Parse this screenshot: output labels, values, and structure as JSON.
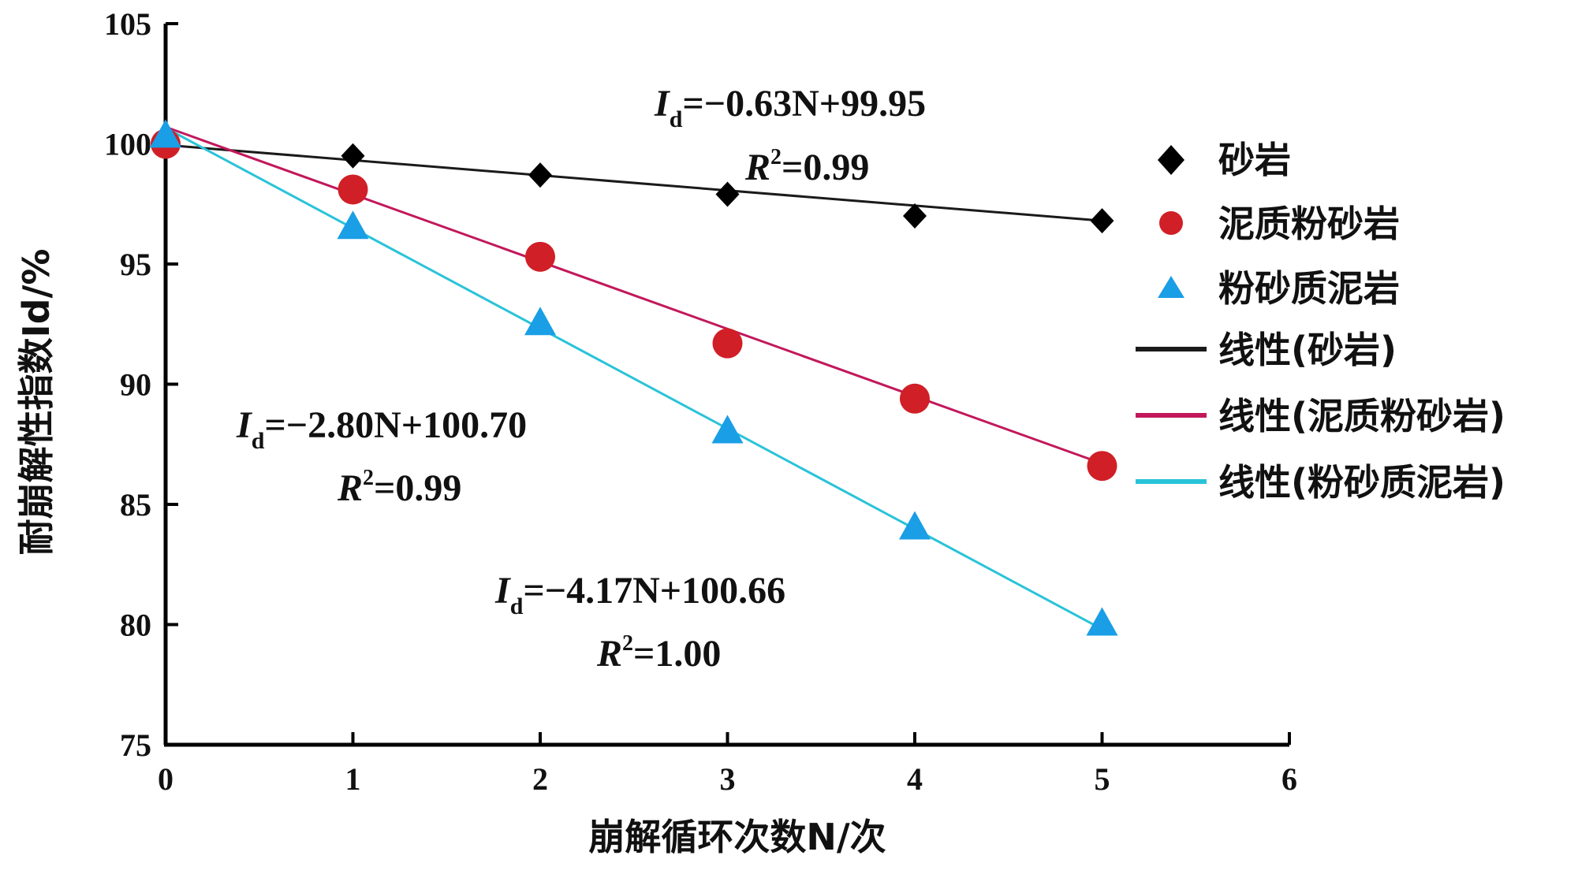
{
  "chart_data": {
    "type": "scatter",
    "xlabel": "崩解循环次数N/次",
    "ylabel": "耐崩解性指数Id/%",
    "xlim": [
      0,
      6
    ],
    "ylim": [
      75,
      105
    ],
    "xticks": [
      "0",
      "1",
      "2",
      "3",
      "4",
      "5",
      "6"
    ],
    "yticks": [
      "75",
      "80",
      "85",
      "90",
      "95",
      "100",
      "105"
    ],
    "grid": false,
    "legend_position": "right",
    "series": [
      {
        "name": "砂岩",
        "marker": "diamond",
        "color": "#000000",
        "x": [
          0,
          1,
          2,
          3,
          4,
          5
        ],
        "values": [
          100.2,
          99.5,
          98.7,
          97.9,
          97.0,
          96.8
        ],
        "fit_name": "线性(砂岩)",
        "fit_color": "#1a1a1a",
        "fit": {
          "slope": -0.63,
          "intercept": 99.95
        },
        "equation": {
          "lhs": "I",
          "sub": "d",
          "rhs": "=−0.63N+99.95",
          "r2_label": "R",
          "r2_sup": "2",
          "r2_value": "=0.99"
        }
      },
      {
        "name": "泥质粉砂岩",
        "marker": "circle",
        "color": "#d01f26",
        "x": [
          0,
          1,
          2,
          3,
          4,
          5
        ],
        "values": [
          100.0,
          98.1,
          95.3,
          91.7,
          89.4,
          86.6
        ],
        "fit_name": "线性(泥质粉砂岩)",
        "fit_color": "#c2185b",
        "fit": {
          "slope": -2.8,
          "intercept": 100.7
        },
        "equation": {
          "lhs": "I",
          "sub": "d",
          "rhs": "=−2.80N+100.70",
          "r2_label": "R",
          "r2_sup": "2",
          "r2_value": "=0.99"
        }
      },
      {
        "name": "粉砂质泥岩",
        "marker": "triangle",
        "color": "#1a9ee6",
        "x": [
          0,
          1,
          2,
          3,
          4,
          5
        ],
        "values": [
          100.3,
          96.5,
          92.5,
          88.0,
          84.0,
          80.0
        ],
        "fit_name": "线性(粉砂质泥岩)",
        "fit_color": "#29c3d8",
        "fit": {
          "slope": -4.17,
          "intercept": 100.66
        },
        "equation": {
          "lhs": "I",
          "sub": "d",
          "rhs": "=−4.17N+100.66",
          "r2_label": "R",
          "r2_sup": "2",
          "r2_value": "=1.00"
        }
      }
    ]
  }
}
